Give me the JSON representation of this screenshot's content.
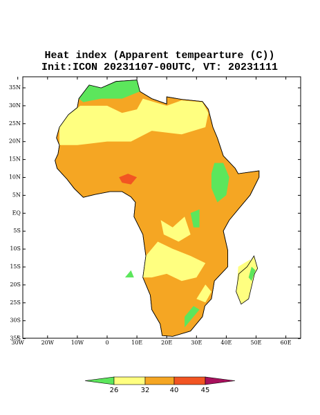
{
  "title": [
    "Heat index (Apparent tempearture (C))",
    "Init:ICON 20231107-00UTC, VT: 20231111"
  ],
  "lat_labels": [
    "35N",
    "30N",
    "25N",
    "20N",
    "15N",
    "10N",
    "5N",
    "EQ",
    "5S",
    "10S",
    "15S",
    "20S",
    "25S",
    "30S",
    "35S"
  ],
  "lon_labels": [
    "30W",
    "20W",
    "10W",
    "0",
    "10E",
    "20E",
    "30E",
    "40E",
    "50E",
    "60E"
  ],
  "colorbar": {
    "labels": [
      "26",
      "32",
      "40",
      "45"
    ],
    "colors": [
      "#5ce65c",
      "#ffff80",
      "#f5a623",
      "#f25522",
      "#a8105c"
    ]
  }
}
